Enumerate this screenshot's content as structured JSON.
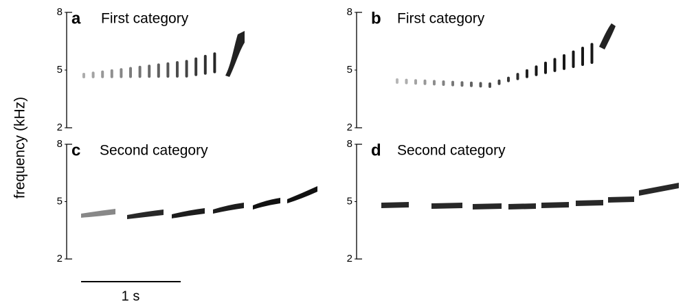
{
  "y_axis_label": "frequency (kHz)",
  "panels": [
    {
      "letter": "a",
      "title": "First category",
      "yticks": [
        8,
        5,
        2
      ]
    },
    {
      "letter": "b",
      "title": "First category",
      "yticks": [
        8,
        5,
        2
      ]
    },
    {
      "letter": "c",
      "title": "Second category",
      "yticks": [
        8,
        5,
        2
      ]
    },
    {
      "letter": "d",
      "title": "Second category",
      "yticks": [
        8,
        5,
        2
      ]
    }
  ],
  "scale_bar": "1 s"
}
